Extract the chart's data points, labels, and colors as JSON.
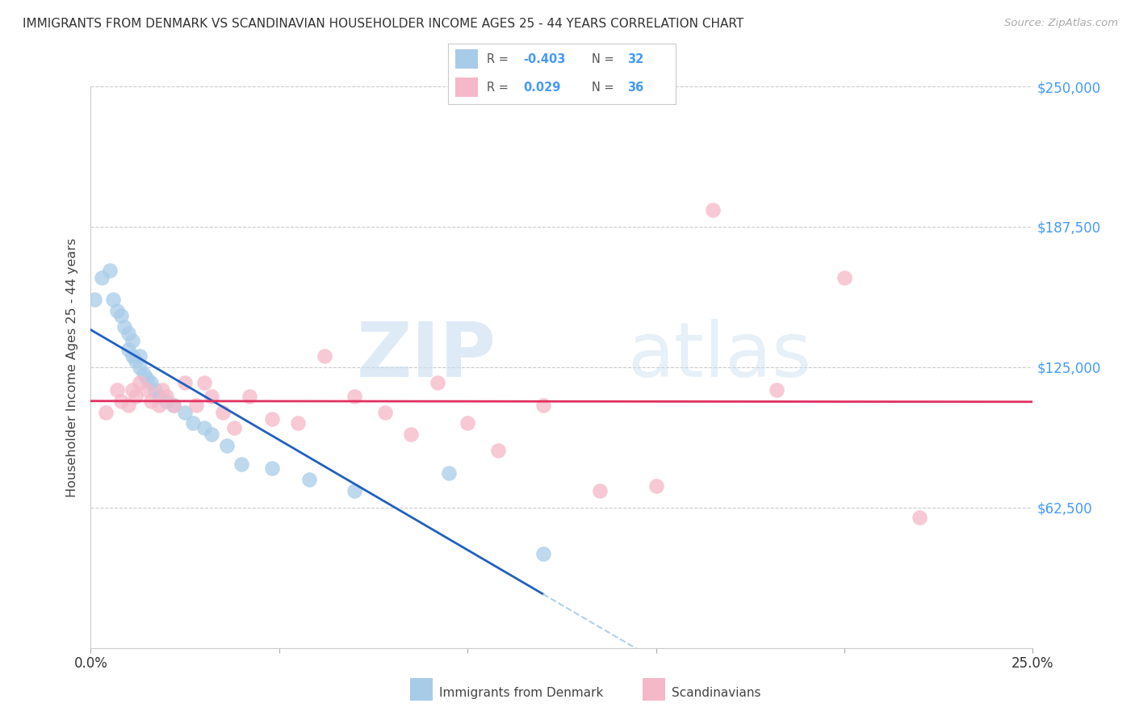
{
  "title": "IMMIGRANTS FROM DENMARK VS SCANDINAVIAN HOUSEHOLDER INCOME AGES 25 - 44 YEARS CORRELATION CHART",
  "source": "Source: ZipAtlas.com",
  "ylabel": "Householder Income Ages 25 - 44 years",
  "xlim": [
    0.0,
    0.25
  ],
  "ylim": [
    0,
    250000
  ],
  "yticks": [
    0,
    62500,
    125000,
    187500,
    250000
  ],
  "ytick_labels": [
    "",
    "$62,500",
    "$125,000",
    "$187,500",
    "$250,000"
  ],
  "xticks": [
    0.0,
    0.05,
    0.1,
    0.15,
    0.2,
    0.25
  ],
  "blue_color": "#a8cce8",
  "pink_color": "#f5b8c8",
  "blue_line_color": "#2060c0",
  "pink_line_color": "#e03060",
  "dash_color": "#b0d0e8",
  "watermark_zip": "ZIP",
  "watermark_atlas": "atlas",
  "blue_r": "-0.403",
  "blue_n": "32",
  "pink_r": "0.029",
  "pink_n": "36",
  "blue_scatter_x": [
    0.001,
    0.003,
    0.005,
    0.006,
    0.007,
    0.008,
    0.009,
    0.01,
    0.01,
    0.011,
    0.011,
    0.012,
    0.013,
    0.013,
    0.014,
    0.015,
    0.016,
    0.017,
    0.018,
    0.02,
    0.022,
    0.025,
    0.027,
    0.03,
    0.032,
    0.036,
    0.04,
    0.048,
    0.058,
    0.07,
    0.095,
    0.12
  ],
  "blue_scatter_y": [
    155000,
    165000,
    168000,
    155000,
    150000,
    148000,
    143000,
    140000,
    133000,
    137000,
    130000,
    128000,
    130000,
    125000,
    122000,
    120000,
    118000,
    115000,
    112000,
    110000,
    108000,
    105000,
    100000,
    98000,
    95000,
    90000,
    82000,
    80000,
    75000,
    70000,
    78000,
    42000
  ],
  "pink_scatter_x": [
    0.004,
    0.007,
    0.008,
    0.01,
    0.011,
    0.012,
    0.013,
    0.015,
    0.016,
    0.018,
    0.019,
    0.02,
    0.022,
    0.025,
    0.028,
    0.03,
    0.032,
    0.035,
    0.038,
    0.042,
    0.048,
    0.055,
    0.062,
    0.07,
    0.078,
    0.085,
    0.092,
    0.1,
    0.108,
    0.12,
    0.135,
    0.15,
    0.165,
    0.182,
    0.2,
    0.22
  ],
  "pink_scatter_y": [
    105000,
    115000,
    110000,
    108000,
    115000,
    112000,
    118000,
    115000,
    110000,
    108000,
    115000,
    112000,
    108000,
    118000,
    108000,
    118000,
    112000,
    105000,
    98000,
    112000,
    102000,
    100000,
    130000,
    112000,
    105000,
    95000,
    118000,
    100000,
    88000,
    108000,
    70000,
    72000,
    195000,
    115000,
    165000,
    58000
  ]
}
